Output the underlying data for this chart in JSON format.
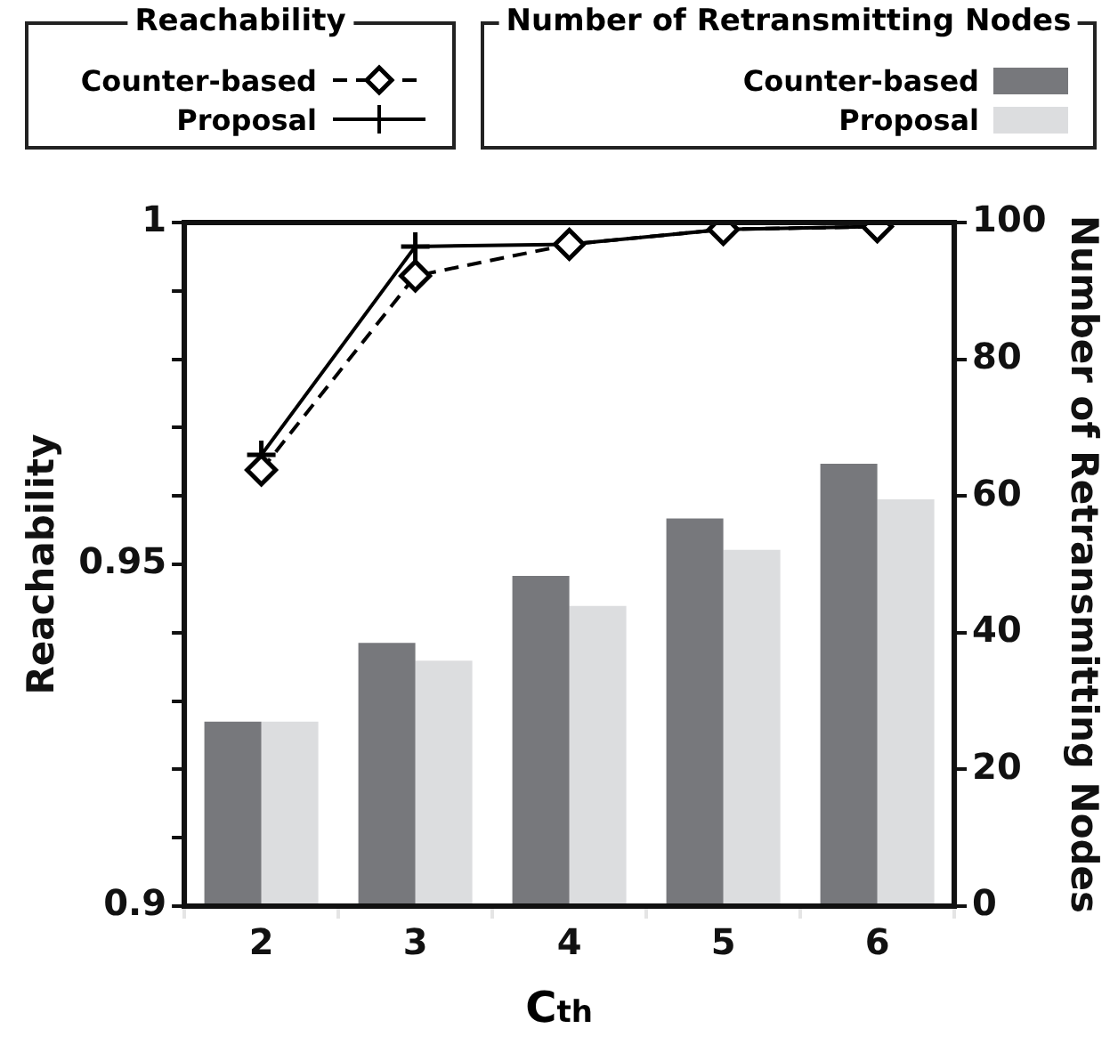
{
  "chart_data": {
    "type": "bar",
    "xlabel": "C$_{th}$",
    "ylabel": "Reachability",
    "y2label": "Number of Retransmitting Nodes",
    "categories": [
      "2",
      "3",
      "4",
      "5",
      "6"
    ],
    "series": [
      {
        "name": "Counter-based",
        "axis": "y2",
        "color": "#77787c",
        "values": [
          27,
          38.5,
          48.3,
          56.7,
          64.7
        ]
      },
      {
        "name": "Proposal",
        "axis": "y2",
        "color": "#dcdddf",
        "values": [
          27,
          35.9,
          43.9,
          52.1,
          59.5
        ]
      },
      {
        "name": "Counter-based",
        "type": "line",
        "axis": "y",
        "color": "#000000",
        "marker": "diamond",
        "line_style": "dashed",
        "values": [
          0.9638,
          0.9922,
          0.9968,
          0.999,
          0.9994
        ]
      },
      {
        "name": "Proposal",
        "type": "line",
        "axis": "y",
        "color": "#000000",
        "marker": "cross",
        "line_style": "solid",
        "values": [
          0.966,
          0.9965,
          0.9968,
          0.999,
          0.9994
        ]
      }
    ],
    "ylim": [
      0.9,
      1
    ],
    "yticks": [
      0.9,
      {
        "value": 0.91,
        "label": null
      },
      {
        "value": 0.92,
        "label": null
      },
      {
        "value": 0.93,
        "label": null
      },
      {
        "value": 0.94,
        "label": null
      },
      0.95,
      {
        "value": 0.96,
        "label": null
      },
      {
        "value": 0.97,
        "label": null
      },
      {
        "value": 0.98,
        "label": null
      },
      {
        "value": 0.99,
        "label": null
      },
      1
    ],
    "y2lim": [
      0,
      100
    ],
    "y2ticks": [
      0,
      20,
      40,
      60,
      80,
      100
    ],
    "legend": "top",
    "grid": false
  }
}
